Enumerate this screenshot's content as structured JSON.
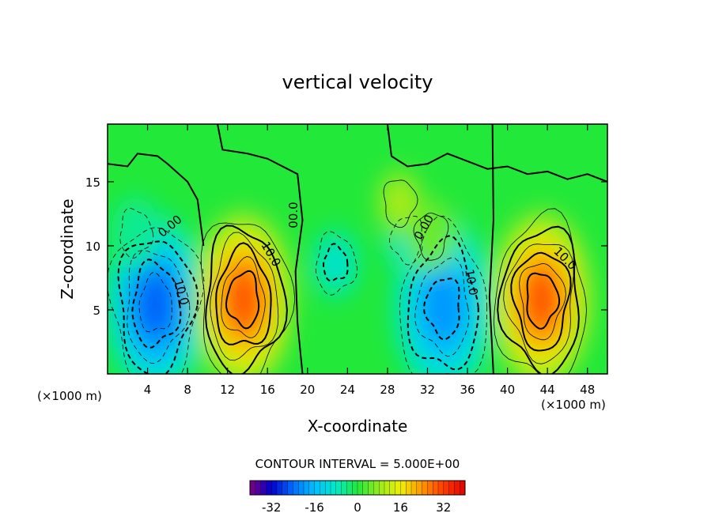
{
  "chart_data": {
    "type": "heatmap",
    "title": "vertical velocity",
    "xlabel": "X-coordinate",
    "ylabel": "Z-coordinate",
    "x_unit_left": "(×1000 m)",
    "x_unit_right": "(×1000 m)",
    "xlim": [
      0,
      50
    ],
    "ylim": [
      0,
      19.5
    ],
    "x_ticks": [
      4,
      8,
      12,
      16,
      20,
      24,
      28,
      32,
      36,
      40,
      44,
      48
    ],
    "y_ticks": [
      5,
      10,
      15
    ],
    "contour_interval_text": "CONTOUR INTERVAL = 5.000E+00",
    "contour_interval": 5,
    "colorbar": {
      "range": [
        -40,
        40
      ],
      "ticks": [
        "-32",
        "-16",
        "0",
        "16",
        "32"
      ],
      "tick_values": [
        -32,
        -16,
        0,
        16,
        32
      ]
    },
    "contour_labels": [
      {
        "text": "0.00",
        "x": 6.5,
        "y": 11.3,
        "rotate": -40
      },
      {
        "text": "10.0",
        "x": 7.0,
        "y": 6.3,
        "rotate": 75
      },
      {
        "text": "00.0",
        "x": 19.0,
        "y": 12.4,
        "rotate": -90
      },
      {
        "text": "10.0",
        "x": 16.0,
        "y": 9.2,
        "rotate": 60
      },
      {
        "text": "0.00",
        "x": 32.0,
        "y": 11.3,
        "rotate": -60
      },
      {
        "text": "10.0",
        "x": 36.0,
        "y": 7.1,
        "rotate": 80
      },
      {
        "text": "10.0",
        "x": 45.5,
        "y": 8.8,
        "rotate": 45
      }
    ],
    "features": [
      {
        "x": 4.8,
        "z": 5.4,
        "value": -26
      },
      {
        "x": 13.6,
        "z": 5.8,
        "value": 32
      },
      {
        "x": 22.8,
        "z": 8.6,
        "value": -10
      },
      {
        "x": 33.6,
        "z": 5.2,
        "value": -20
      },
      {
        "x": 43.4,
        "z": 5.8,
        "value": 32
      },
      {
        "x": 30.0,
        "z": 10.5,
        "value": -8
      },
      {
        "x": 32.4,
        "z": 10.8,
        "value": 6
      },
      {
        "x": 29.2,
        "z": 13.4,
        "value": 8
      },
      {
        "x": 2.8,
        "z": 11.0,
        "value": -6
      }
    ]
  },
  "colors": {
    "background": "#ffffff",
    "field_base": "#22e83a"
  }
}
